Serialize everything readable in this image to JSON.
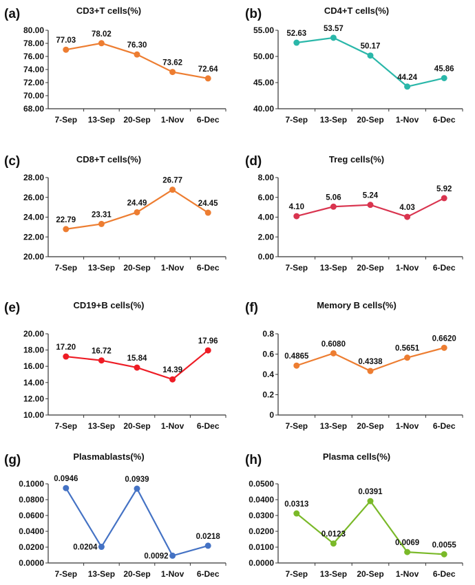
{
  "figure": {
    "panel_count": 8
  },
  "chart_data": [
    {
      "type": "line",
      "panel": "(a)",
      "title": "CD3+T cells(%)",
      "color": "#ED7D31",
      "categories": [
        "7-Sep",
        "13-Sep",
        "20-Sep",
        "1-Nov",
        "6-Dec"
      ],
      "values": [
        77.03,
        78.02,
        76.3,
        73.62,
        72.64
      ],
      "labels": [
        "77.03",
        "78.02",
        "76.30",
        "73.62",
        "72.64"
      ],
      "ylim": [
        68,
        80
      ],
      "yticks": [
        "68.00",
        "70.00",
        "72.00",
        "74.00",
        "76.00",
        "78.00",
        "80.00"
      ],
      "xlabel": "",
      "ylabel": "",
      "grid": false
    },
    {
      "type": "line",
      "panel": "(b)",
      "title": "CD4+T cells(%)",
      "color": "#2AB7A9",
      "categories": [
        "7-Sep",
        "13-Sep",
        "20-Sep",
        "1-Nov",
        "6-Dec"
      ],
      "values": [
        52.63,
        53.57,
        50.17,
        44.24,
        45.86
      ],
      "labels": [
        "52.63",
        "53.57",
        "50.17",
        "44.24",
        "45.86"
      ],
      "ylim": [
        40,
        55
      ],
      "yticks": [
        "40.00",
        "45.00",
        "50.00",
        "55.00"
      ],
      "xlabel": "",
      "ylabel": "",
      "grid": false
    },
    {
      "type": "line",
      "panel": "(c)",
      "title": "CD8+T cells(%)",
      "color": "#ED7D31",
      "categories": [
        "7-Sep",
        "13-Sep",
        "20-Sep",
        "1-Nov",
        "6-Dec"
      ],
      "values": [
        22.79,
        23.31,
        24.49,
        26.77,
        24.45
      ],
      "labels": [
        "22.79",
        "23.31",
        "24.49",
        "26.77",
        "24.45"
      ],
      "ylim": [
        20,
        28
      ],
      "yticks": [
        "20.00",
        "22.00",
        "24.00",
        "26.00",
        "28.00"
      ],
      "xlabel": "",
      "ylabel": "",
      "grid": false
    },
    {
      "type": "line",
      "panel": "(d)",
      "title": "Treg cells(%)",
      "color": "#D9344F",
      "categories": [
        "7-Sep",
        "13-Sep",
        "20-Sep",
        "1-Nov",
        "6-Dec"
      ],
      "values": [
        4.1,
        5.06,
        5.24,
        4.03,
        5.92
      ],
      "labels": [
        "4.10",
        "5.06",
        "5.24",
        "4.03",
        "5.92"
      ],
      "ylim": [
        0,
        8
      ],
      "yticks": [
        "0.00",
        "2.00",
        "4.00",
        "6.00",
        "8.00"
      ],
      "xlabel": "",
      "ylabel": "",
      "grid": false
    },
    {
      "type": "line",
      "panel": "(e)",
      "title": "CD19+B cells(%)",
      "color": "#EE1C25",
      "categories": [
        "7-Sep",
        "13-Sep",
        "20-Sep",
        "1-Nov",
        "6-Dec"
      ],
      "values": [
        17.2,
        16.72,
        15.84,
        14.39,
        17.96
      ],
      "labels": [
        "17.20",
        "16.72",
        "15.84",
        "14.39",
        "17.96"
      ],
      "ylim": [
        10,
        20
      ],
      "yticks": [
        "10.00",
        "12.00",
        "14.00",
        "16.00",
        "18.00",
        "20.00"
      ],
      "xlabel": "",
      "ylabel": "",
      "grid": false
    },
    {
      "type": "line",
      "panel": "(f)",
      "title": "Memory B cells(%)",
      "color": "#ED7D31",
      "categories": [
        "7-Sep",
        "13-Sep",
        "20-Sep",
        "1-Nov",
        "6-Dec"
      ],
      "values": [
        0.4865,
        0.608,
        0.4338,
        0.5651,
        0.662
      ],
      "labels": [
        "0.4865",
        "0.6080",
        "0.4338",
        "0.5651",
        "0.6620"
      ],
      "ylim": [
        0,
        0.8
      ],
      "yticks": [
        "0",
        "0.2",
        "0.4",
        "0.6",
        "0.8"
      ],
      "xlabel": "",
      "ylabel": "",
      "grid": false
    },
    {
      "type": "line",
      "panel": "(g)",
      "title": "Plasmablasts(%)",
      "color": "#4472C4",
      "categories": [
        "7-Sep",
        "13-Sep",
        "20-Sep",
        "1-Nov",
        "6-Dec"
      ],
      "values": [
        0.0946,
        0.0204,
        0.0939,
        0.0092,
        0.0218
      ],
      "labels": [
        "0.0946",
        "0.0204",
        "0.0939",
        "0.0092",
        "0.0218"
      ],
      "ylim": [
        0,
        0.1
      ],
      "yticks": [
        "0.0000",
        "0.0200",
        "0.0400",
        "0.0600",
        "0.0800",
        "0.1000"
      ],
      "xlabel": "",
      "ylabel": "",
      "grid": false
    },
    {
      "type": "line",
      "panel": "(h)",
      "title": "Plasma cells(%)",
      "color": "#7AB929",
      "categories": [
        "7-Sep",
        "13-Sep",
        "20-Sep",
        "1-Nov",
        "6-Dec"
      ],
      "values": [
        0.0313,
        0.0123,
        0.0391,
        0.0069,
        0.0055
      ],
      "labels": [
        "0.0313",
        "0.0123",
        "0.0391",
        "0.0069",
        "0.0055"
      ],
      "ylim": [
        0,
        0.05
      ],
      "yticks": [
        "0.0000",
        "0.0100",
        "0.0200",
        "0.0300",
        "0.0400",
        "0.0500"
      ],
      "xlabel": "",
      "ylabel": "",
      "grid": false
    }
  ]
}
